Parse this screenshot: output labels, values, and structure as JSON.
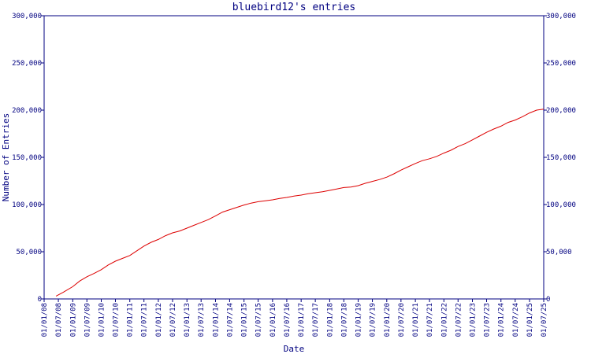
{
  "chart_data": {
    "type": "line",
    "title": "bluebird12's entries",
    "xlabel": "Date",
    "ylabel": "Number of Entries",
    "ylim": [
      0,
      300000
    ],
    "xlim": [
      "2008-01-01",
      "2025-07-01"
    ],
    "y_ticks": [
      0,
      50000,
      100000,
      150000,
      200000,
      250000,
      300000
    ],
    "y_tick_labels": [
      "0",
      "50,000",
      "100,000",
      "150,000",
      "200,000",
      "250,000",
      "300,000"
    ],
    "x_ticks": [
      "2008-01-01",
      "2008-07-01",
      "2009-01-01",
      "2009-07-01",
      "2010-01-01",
      "2010-07-01",
      "2011-01-01",
      "2011-07-01",
      "2012-01-01",
      "2012-07-01",
      "2013-01-01",
      "2013-07-01",
      "2014-01-01",
      "2014-07-01",
      "2015-01-01",
      "2015-07-01",
      "2016-01-01",
      "2016-07-01",
      "2017-01-01",
      "2017-07-01",
      "2018-01-01",
      "2018-07-01",
      "2019-01-01",
      "2019-07-01",
      "2020-01-01",
      "2020-07-01",
      "2021-01-01",
      "2021-07-01",
      "2022-01-01",
      "2022-07-01",
      "2023-01-01",
      "2023-07-01",
      "2024-01-01",
      "2024-07-01",
      "2025-01-01",
      "2025-07-01"
    ],
    "x_tick_labels": [
      "01/01/08",
      "01/07/08",
      "01/01/09",
      "01/07/09",
      "01/01/10",
      "01/07/10",
      "01/01/11",
      "01/07/11",
      "01/01/12",
      "01/07/12",
      "01/01/13",
      "01/07/13",
      "01/01/14",
      "01/07/14",
      "01/01/15",
      "01/07/15",
      "01/01/16",
      "01/07/16",
      "01/01/17",
      "01/07/17",
      "01/01/18",
      "01/07/18",
      "01/01/19",
      "01/07/19",
      "01/01/20",
      "01/07/20",
      "01/01/21",
      "01/07/21",
      "01/01/22",
      "01/07/22",
      "01/01/23",
      "01/07/23",
      "01/01/24",
      "01/07/24",
      "01/01/25",
      "01/07/25"
    ],
    "grid": false,
    "legend": "none",
    "colors": {
      "axis": "#000080",
      "line": "#dd0000",
      "background": "#ffffff"
    },
    "series": [
      {
        "x": [
          "2008-06-01",
          "2008-09-01",
          "2009-01-01",
          "2009-04-01",
          "2009-07-01",
          "2009-10-01",
          "2010-01-01",
          "2010-04-01",
          "2010-07-01",
          "2010-10-01",
          "2011-01-01",
          "2011-04-01",
          "2011-07-01",
          "2011-10-01",
          "2012-01-01",
          "2012-04-01",
          "2012-07-01",
          "2012-10-01",
          "2013-01-01",
          "2013-04-01",
          "2013-07-01",
          "2013-10-01",
          "2014-01-01",
          "2014-04-01",
          "2014-07-01",
          "2014-10-01",
          "2015-01-01",
          "2015-04-01",
          "2015-07-01",
          "2015-10-01",
          "2016-01-01",
          "2016-04-01",
          "2016-07-01",
          "2016-10-01",
          "2017-01-01",
          "2017-04-01",
          "2017-07-01",
          "2017-10-01",
          "2018-01-01",
          "2018-04-01",
          "2018-07-01",
          "2018-10-01",
          "2019-01-01",
          "2019-04-01",
          "2019-07-01",
          "2019-10-01",
          "2020-01-01",
          "2020-04-01",
          "2020-07-01",
          "2020-10-01",
          "2021-01-01",
          "2021-04-01",
          "2021-07-01",
          "2021-10-01",
          "2022-01-01",
          "2022-04-01",
          "2022-07-01",
          "2022-10-01",
          "2023-01-01",
          "2023-04-01",
          "2023-07-01",
          "2023-10-01",
          "2024-01-01",
          "2024-04-01",
          "2024-07-01",
          "2024-10-01",
          "2025-01-01",
          "2025-04-01",
          "2025-07-01"
        ],
        "values": [
          3000,
          7000,
          13000,
          19000,
          23500,
          27000,
          31000,
          36000,
          40000,
          43000,
          46000,
          51000,
          56000,
          60000,
          63000,
          67000,
          70000,
          72000,
          75000,
          78000,
          81000,
          84000,
          88000,
          92000,
          94500,
          97000,
          99500,
          101500,
          103000,
          104000,
          105000,
          106500,
          107500,
          109000,
          110000,
          111500,
          112500,
          113500,
          115000,
          116500,
          118000,
          118500,
          120000,
          122500,
          124500,
          126500,
          129000,
          132500,
          136500,
          140000,
          143500,
          146500,
          148500,
          151000,
          154500,
          157500,
          161500,
          164500,
          168500,
          172500,
          176500,
          180000,
          183000,
          187000,
          189500,
          193000,
          197000,
          200000,
          201000
        ]
      }
    ]
  }
}
